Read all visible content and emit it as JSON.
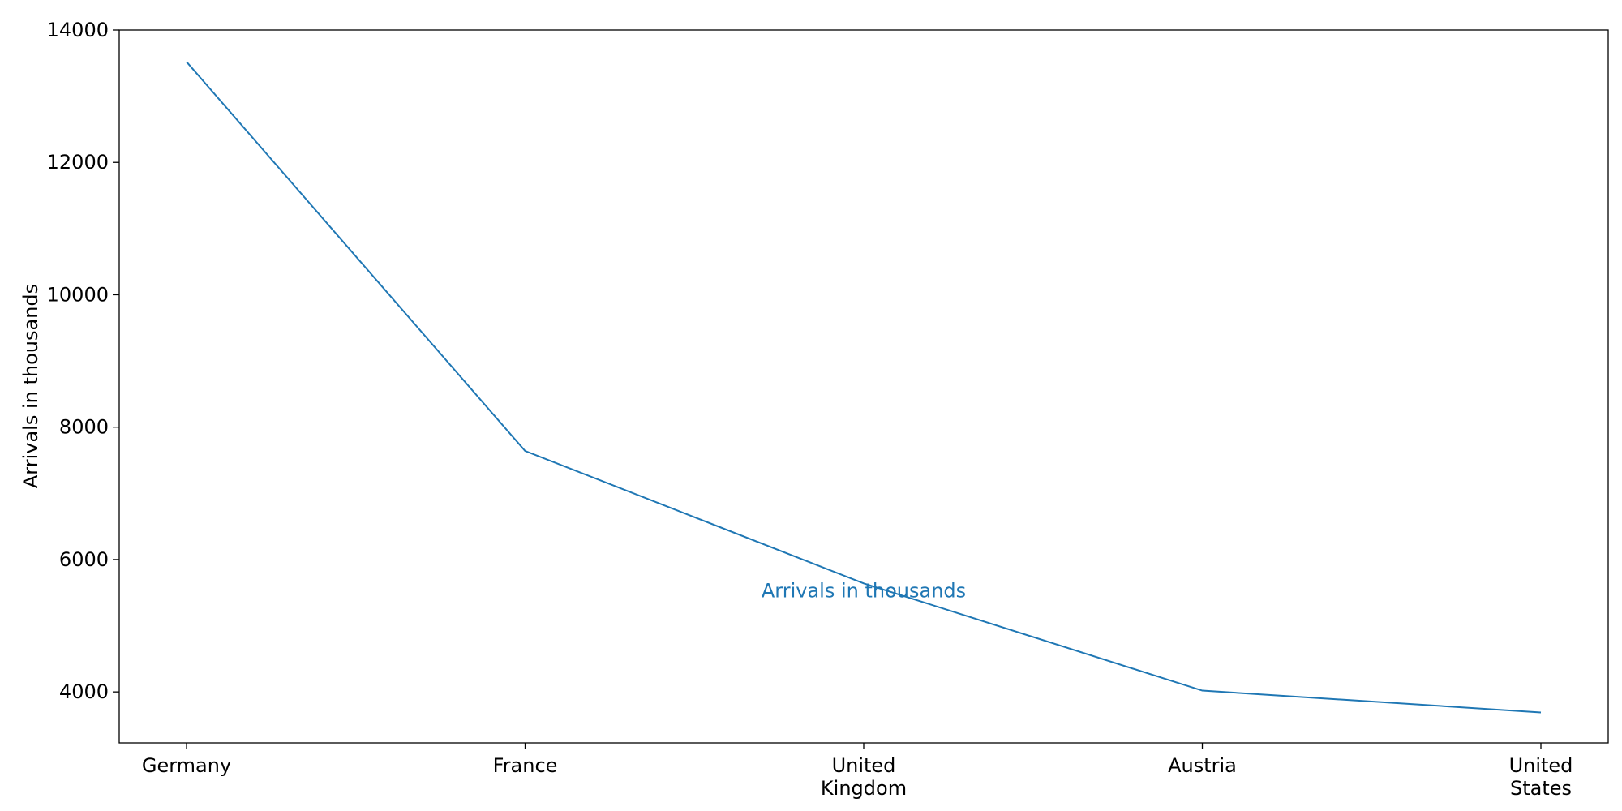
{
  "chart_data": {
    "type": "line",
    "title": "",
    "xlabel": "",
    "ylabel": "Arrivals in thousands",
    "categories": [
      "Germany",
      "France",
      "United Kingdom",
      "Austria",
      "United States"
    ],
    "category_lines": [
      [
        "Germany"
      ],
      [
        "France"
      ],
      [
        "United",
        "Kingdom"
      ],
      [
        "Austria"
      ],
      [
        "United",
        "States"
      ]
    ],
    "series": [
      {
        "values": [
          13520,
          7640,
          5640,
          4020,
          3690
        ],
        "color": "#1f77b4"
      }
    ],
    "annotation": {
      "text": "Arrivals in thousands",
      "color": "#1f77b4",
      "at_category": "United Kingdom"
    },
    "yticks": [
      4000,
      6000,
      8000,
      10000,
      12000,
      14000
    ],
    "ylim": [
      3230,
      14000
    ],
    "grid": false,
    "legend": "none"
  }
}
